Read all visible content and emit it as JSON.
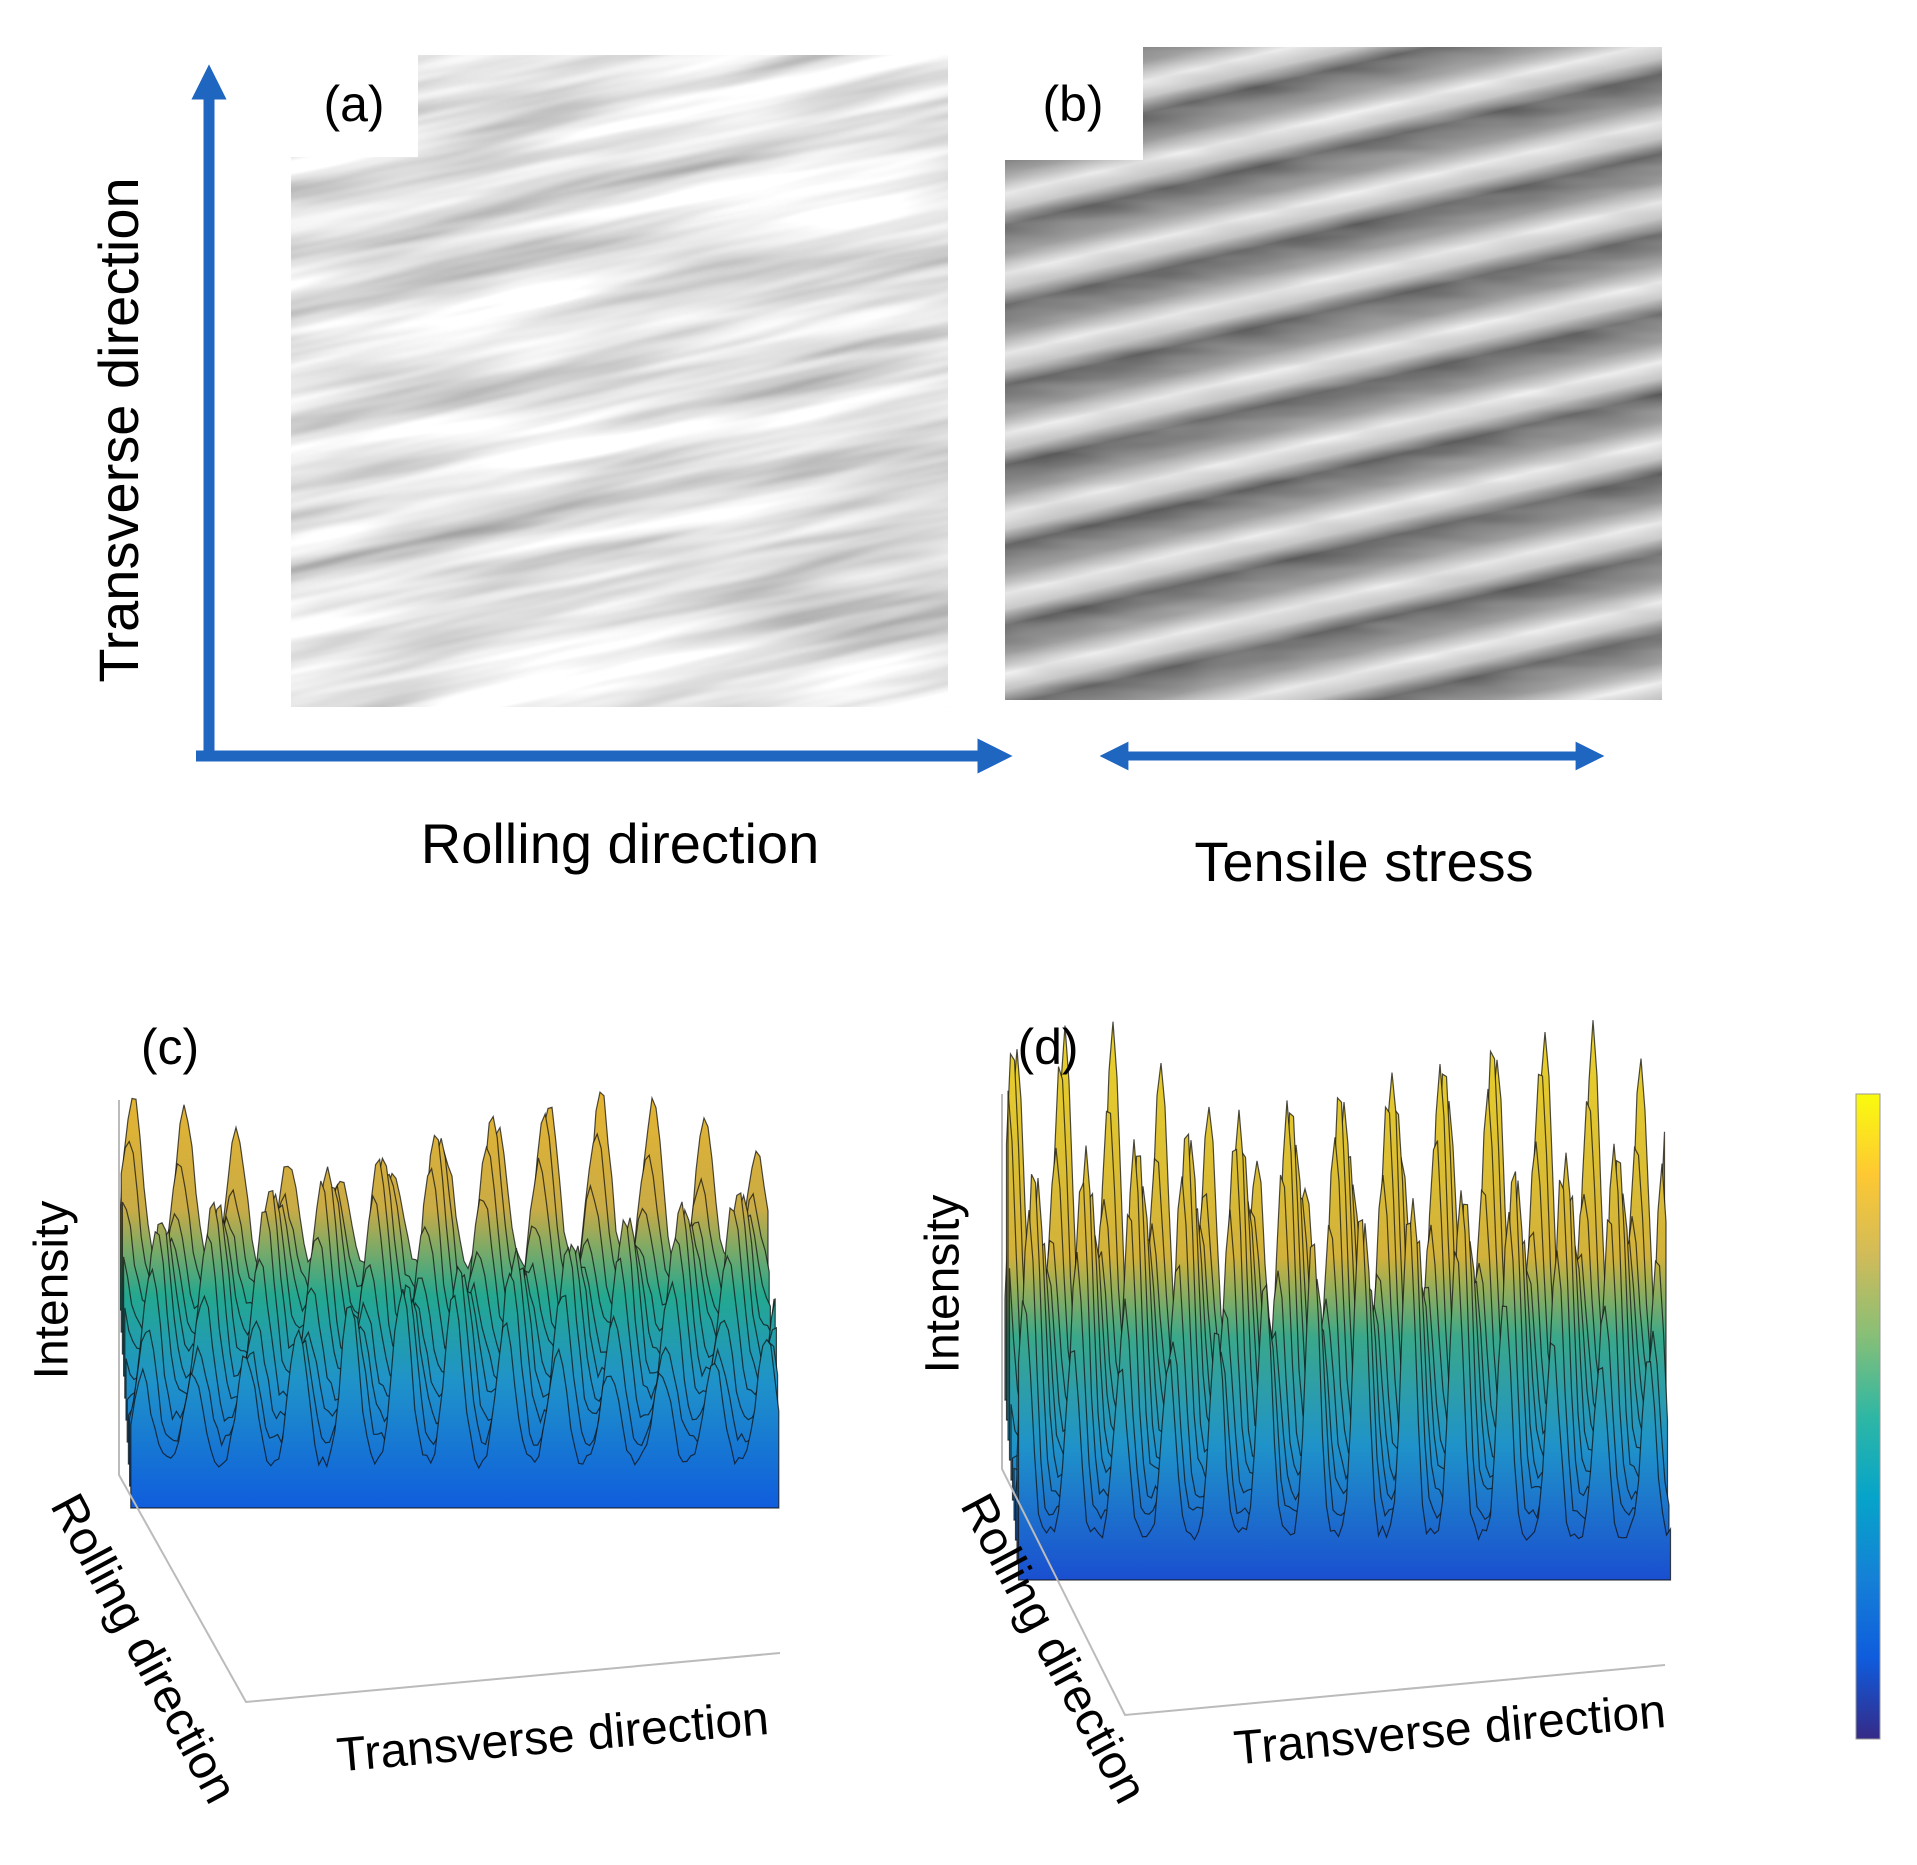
{
  "panel_a": {
    "label": "(a)"
  },
  "panel_b": {
    "label": "(b)"
  },
  "top_axes": {
    "vertical": "Transverse direction",
    "horizontal": "Rolling direction",
    "stress": "Tensile stress"
  },
  "panel_c": {
    "label": "(c)",
    "z_axis": "Intensity",
    "y_axis": "Rolling direction",
    "x_axis": "Transverse direction"
  },
  "panel_d": {
    "label": "(d)",
    "z_axis": "Intensity",
    "y_axis": "Rolling direction",
    "x_axis": "Transverse direction"
  }
}
